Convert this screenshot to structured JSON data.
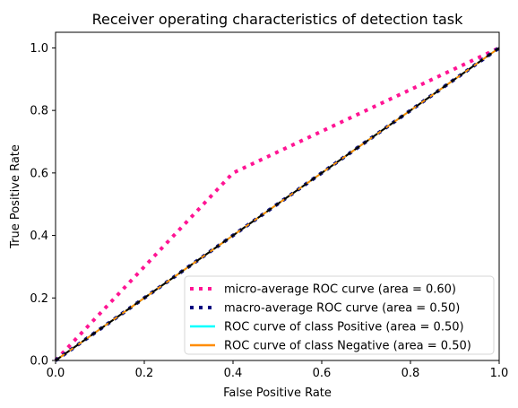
{
  "chart_data": {
    "type": "line",
    "title": "Receiver operating characteristics of detection task",
    "xlabel": "False Positive Rate",
    "ylabel": "True Positive Rate",
    "xlim": [
      0.0,
      1.0
    ],
    "ylim": [
      0.0,
      1.05
    ],
    "xticks": [
      0.0,
      0.2,
      0.4,
      0.6,
      0.8,
      1.0
    ],
    "yticks": [
      0.0,
      0.2,
      0.4,
      0.6,
      0.8,
      1.0
    ],
    "xtick_labels": [
      "0.0",
      "0.2",
      "0.4",
      "0.6",
      "0.8",
      "1.0"
    ],
    "ytick_labels": [
      "0.0",
      "0.2",
      "0.4",
      "0.6",
      "0.8",
      "1.0"
    ],
    "grid": false,
    "legend_position": "lower-right",
    "series": [
      {
        "name": "micro-average ROC curve (area = 0.60)",
        "color": "#ff1493",
        "style": "dotted",
        "x": [
          0.0,
          0.4,
          1.0
        ],
        "y": [
          0.0,
          0.6,
          1.0
        ]
      },
      {
        "name": "macro-average ROC curve (area = 0.50)",
        "color": "#000080",
        "style": "dotted",
        "x": [
          0.0,
          1.0
        ],
        "y": [
          0.0,
          1.0
        ]
      },
      {
        "name": "ROC curve of class Positive (area = 0.50)",
        "color": "#00ffff",
        "style": "solid",
        "x": [
          0.0,
          1.0
        ],
        "y": [
          0.0,
          1.0
        ]
      },
      {
        "name": "ROC curve of class Negative (area = 0.50)",
        "color": "#ff8c00",
        "style": "solid",
        "x": [
          0.0,
          1.0
        ],
        "y": [
          0.0,
          1.0
        ]
      }
    ],
    "reference_line": {
      "color": "#000000",
      "style": "dashed",
      "x": [
        0.0,
        1.0
      ],
      "y": [
        0.0,
        1.0
      ]
    }
  }
}
